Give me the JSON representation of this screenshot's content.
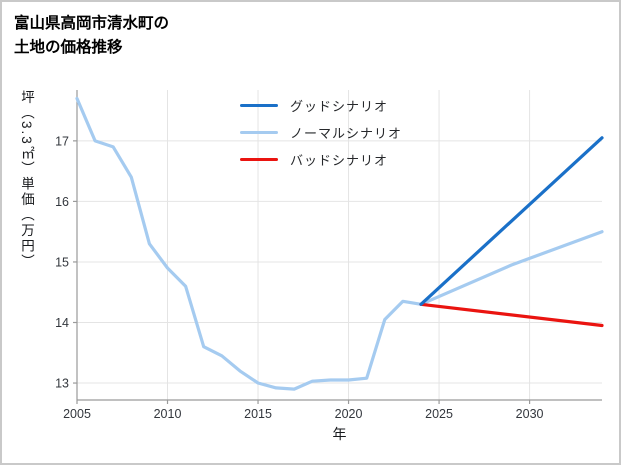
{
  "title": {
    "line1": "富山県高岡市清水町の",
    "line2": "土地の価格推移"
  },
  "chart_data": {
    "type": "line",
    "title": "富山県高岡市清水町の土地の価格推移",
    "xlabel": "年",
    "ylabel": "坪（3.3㎡）単価（万円）",
    "xlim": [
      2005,
      2034
    ],
    "ylim": [
      12.72,
      17.84
    ],
    "xticks": [
      2005,
      2010,
      2015,
      2020,
      2025,
      2030
    ],
    "yticks": [
      13,
      14,
      15,
      16,
      17
    ],
    "grid": true,
    "legend_position": "top-center-inside",
    "colors": {
      "grid": "#e4e4e4",
      "axis": "#9a9a9a",
      "tick_label": "#33373d"
    },
    "series": [
      {
        "name": "グッドシナリオ",
        "color": "#1a70c8",
        "x": [
          2024,
          2034
        ],
        "values": [
          14.3,
          17.05
        ]
      },
      {
        "name": "ノーマルシナリオ",
        "color": "#a5cbf0",
        "x": [
          2005,
          2006,
          2007,
          2008,
          2009,
          2010,
          2011,
          2012,
          2013,
          2014,
          2015,
          2016,
          2017,
          2018,
          2019,
          2020,
          2021,
          2022,
          2023,
          2024,
          2029,
          2034
        ],
        "values": [
          17.7,
          17.0,
          16.9,
          16.4,
          15.3,
          14.9,
          14.6,
          13.6,
          13.45,
          13.2,
          13.0,
          12.92,
          12.9,
          13.03,
          13.05,
          13.05,
          13.08,
          14.05,
          14.35,
          14.3,
          14.95,
          15.5
        ]
      },
      {
        "name": "バッドシナリオ",
        "color": "#ea1410",
        "x": [
          2024,
          2034
        ],
        "values": [
          14.3,
          13.95
        ]
      }
    ]
  }
}
